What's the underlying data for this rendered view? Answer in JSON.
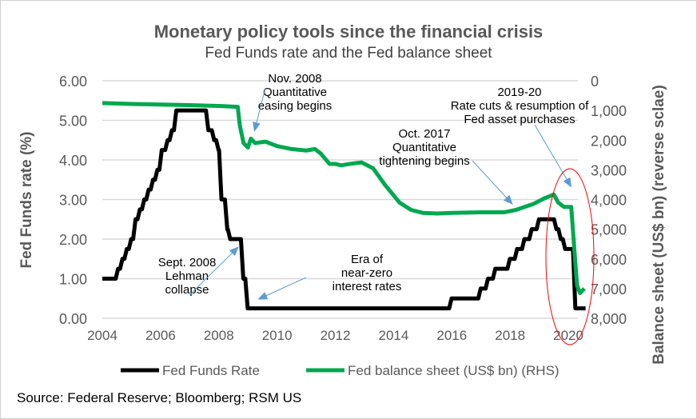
{
  "chart_data": {
    "type": "line",
    "title": "Monetary policy tools since the financial crisis",
    "subtitle": "Fed Funds rate and the Fed balance sheet",
    "ylabel": "Fed Funds rate (%)",
    "y2label": "Balance sheet (US$ bn) (reverse sclae)",
    "xlim": [
      2004,
      2020.6
    ],
    "ylim": [
      0,
      6
    ],
    "y2lim": [
      8000,
      0
    ],
    "y2_reversed": true,
    "grid": "horizontal",
    "legend_placement": "bottom",
    "x_ticks": [
      "2004",
      "2006",
      "2008",
      "2010",
      "2012",
      "2014",
      "2016",
      "2018",
      "2020"
    ],
    "y_ticks": [
      "0.00",
      "1.00",
      "2.00",
      "3.00",
      "4.00",
      "5.00",
      "6.00"
    ],
    "y2_ticks": [
      "0",
      "1,000",
      "2,000",
      "3,000",
      "4,000",
      "5,000",
      "6,000",
      "7,000",
      "8,000"
    ],
    "series": [
      {
        "name": "Fed Funds Rate",
        "axis": "left",
        "color": "#000000",
        "step": true,
        "points": [
          [
            2004,
            1.0
          ],
          [
            2004.5,
            1.25
          ],
          [
            2004.65,
            1.5
          ],
          [
            2004.8,
            1.75
          ],
          [
            2004.95,
            2.0
          ],
          [
            2005.1,
            2.5
          ],
          [
            2005.25,
            2.75
          ],
          [
            2005.4,
            3.0
          ],
          [
            2005.55,
            3.25
          ],
          [
            2005.7,
            3.5
          ],
          [
            2005.85,
            3.75
          ],
          [
            2006.0,
            4.25
          ],
          [
            2006.2,
            4.5
          ],
          [
            2006.35,
            4.75
          ],
          [
            2006.5,
            5.25
          ],
          [
            2007.6,
            4.75
          ],
          [
            2007.8,
            4.5
          ],
          [
            2007.95,
            4.25
          ],
          [
            2008.05,
            3.0
          ],
          [
            2008.25,
            2.25
          ],
          [
            2008.35,
            2.0
          ],
          [
            2008.8,
            1.0
          ],
          [
            2008.95,
            0.25
          ],
          [
            2015.95,
            0.5
          ],
          [
            2016.95,
            0.75
          ],
          [
            2017.2,
            1.0
          ],
          [
            2017.45,
            1.25
          ],
          [
            2017.95,
            1.5
          ],
          [
            2018.2,
            1.75
          ],
          [
            2018.45,
            2.0
          ],
          [
            2018.7,
            2.25
          ],
          [
            2018.95,
            2.5
          ],
          [
            2019.55,
            2.25
          ],
          [
            2019.7,
            2.0
          ],
          [
            2019.85,
            1.75
          ],
          [
            2020.2,
            0.25
          ],
          [
            2020.55,
            0.25
          ]
        ]
      },
      {
        "name": "Fed balance sheet (US$ bn) (RHS)",
        "axis": "right",
        "color": "#00A84F",
        "points": [
          [
            2004,
            750
          ],
          [
            2005,
            780
          ],
          [
            2006,
            800
          ],
          [
            2007,
            820
          ],
          [
            2008,
            850
          ],
          [
            2008.65,
            880
          ],
          [
            2008.72,
            1500
          ],
          [
            2008.85,
            2100
          ],
          [
            2009.0,
            2250
          ],
          [
            2009.1,
            1950
          ],
          [
            2009.25,
            2100
          ],
          [
            2009.6,
            2050
          ],
          [
            2010,
            2200
          ],
          [
            2010.5,
            2300
          ],
          [
            2011,
            2350
          ],
          [
            2011.3,
            2300
          ],
          [
            2011.5,
            2450
          ],
          [
            2011.8,
            2800
          ],
          [
            2012,
            2800
          ],
          [
            2012.2,
            2850
          ],
          [
            2012.5,
            2800
          ],
          [
            2012.9,
            2750
          ],
          [
            2013.3,
            2950
          ],
          [
            2013.7,
            3500
          ],
          [
            2014.2,
            4100
          ],
          [
            2014.6,
            4350
          ],
          [
            2015,
            4450
          ],
          [
            2015.5,
            4470
          ],
          [
            2016,
            4450
          ],
          [
            2017,
            4430
          ],
          [
            2017.8,
            4430
          ],
          [
            2018.2,
            4350
          ],
          [
            2018.8,
            4150
          ],
          [
            2019.2,
            3950
          ],
          [
            2019.5,
            3830
          ],
          [
            2019.65,
            4100
          ],
          [
            2019.85,
            4250
          ],
          [
            2020.1,
            4250
          ],
          [
            2020.2,
            5600
          ],
          [
            2020.3,
            6900
          ],
          [
            2020.4,
            7150
          ],
          [
            2020.55,
            7000
          ]
        ]
      }
    ],
    "annotations": [
      {
        "lines": [
          "Nov. 2008",
          "Quantitative",
          "easing begins"
        ]
      },
      {
        "lines": [
          "Sept. 2008",
          "Lehman",
          "collapse"
        ]
      },
      {
        "lines": [
          "Era of",
          "near-zero",
          "interest rates"
        ]
      },
      {
        "lines": [
          "Oct. 2017",
          "Quantitative",
          "tightening begins"
        ]
      },
      {
        "lines": [
          "2019-20",
          "Rate cuts & resumption of",
          "Fed asset purchases"
        ]
      }
    ],
    "source": "Source: Federal Reserve; Bloomberg; RSM US",
    "arrow_color": "#5B9BD5",
    "highlight_color": "#FF0000"
  }
}
